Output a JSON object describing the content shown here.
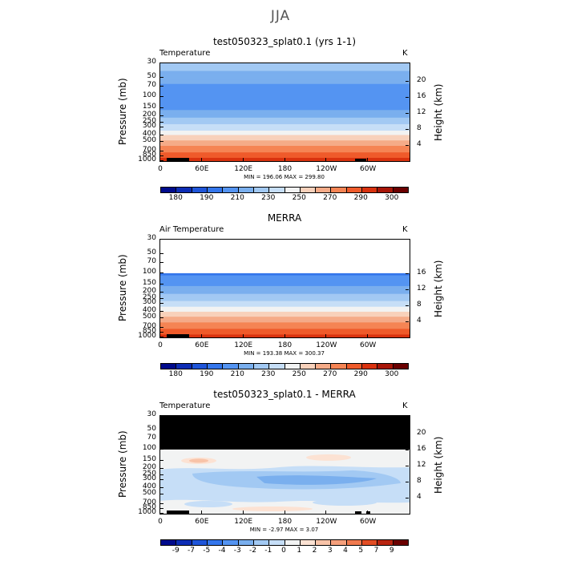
{
  "title": "JJA",
  "colors_abs": [
    "#000b8c",
    "#0d2db5",
    "#1f55d9",
    "#3476ec",
    "#5494f2",
    "#7aafee",
    "#a2c9f3",
    "#c6def7",
    "#f2f3f3",
    "#f8d1bb",
    "#f5ab88",
    "#f58454",
    "#ef5b2b",
    "#d9320f",
    "#a81608",
    "#6b0000"
  ],
  "colors_diff": [
    "#000b8c",
    "#0d2db5",
    "#1f55d9",
    "#3476ec",
    "#5494f2",
    "#7aafee",
    "#a2c9f3",
    "#c6def7",
    "#f2f3f3",
    "#fce2d3",
    "#f8c3a8",
    "#f5a07c",
    "#f07a4f",
    "#e24d24",
    "#b82410",
    "#6b0000"
  ],
  "panels": [
    {
      "title": "test050323_splat0.1 (yrs 1-1)",
      "var_label": "Temperature",
      "units": "K",
      "ylabel": "Pressure (mb)",
      "rlabel": "Height (km)",
      "pressure_ticks": [
        "30",
        "50",
        "70",
        "100",
        "150",
        "200",
        "250",
        "300",
        "400",
        "500",
        "700",
        "850",
        "1000"
      ],
      "height_ticks": [
        "20",
        "16",
        "12",
        "8",
        "4"
      ],
      "lon_ticks": [
        "0",
        "60E",
        "120E",
        "180",
        "120W",
        "60W"
      ],
      "minmax": "MIN = 196.06   MAX = 299.80",
      "cbar_labels": [
        "180",
        "190",
        "210",
        "230",
        "250",
        "270",
        "290",
        "300"
      ]
    },
    {
      "title": "MERRA",
      "var_label": "Air Temperature",
      "units": "K",
      "ylabel": "Pressure (mb)",
      "rlabel": "Height (km)",
      "pressure_ticks": [
        "30",
        "50",
        "70",
        "100",
        "150",
        "200",
        "250",
        "300",
        "400",
        "500",
        "700",
        "850",
        "1000"
      ],
      "height_ticks": [
        "16",
        "12",
        "8",
        "4"
      ],
      "lon_ticks": [
        "0",
        "60E",
        "120E",
        "180",
        "120W",
        "60W"
      ],
      "minmax": "MIN = 193.38   MAX = 300.37",
      "cbar_labels": [
        "180",
        "190",
        "210",
        "230",
        "250",
        "270",
        "290",
        "300"
      ]
    },
    {
      "title": "test050323_splat0.1 - MERRA",
      "var_label": "Temperature",
      "units": "K",
      "ylabel": "Pressure (mb)",
      "rlabel": "Height (km)",
      "pressure_ticks": [
        "30",
        "50",
        "70",
        "100",
        "150",
        "200",
        "250",
        "300",
        "400",
        "500",
        "700",
        "850",
        "1000"
      ],
      "height_ticks": [
        "20",
        "16",
        "12",
        "8",
        "4"
      ],
      "lon_ticks": [
        "0",
        "60E",
        "120E",
        "180",
        "120W",
        "60W"
      ],
      "minmax": "MIN =  -2.97   MAX =   3.07",
      "cbar_labels": [
        "-9",
        "-7",
        "-5",
        "-4",
        "-3",
        "-2",
        "-1",
        "0",
        "1",
        "2",
        "3",
        "4",
        "5",
        "7",
        "9"
      ]
    }
  ],
  "chart_data": [
    {
      "type": "heatmap",
      "title": "test050323_splat0.1 (yrs 1-1)",
      "variable": "Temperature",
      "units": "K",
      "xlabel": "",
      "ylabel": "Pressure (mb)",
      "ylabel_right": "Height (km)",
      "x_ticks": [
        "0",
        "60E",
        "120E",
        "180",
        "120W",
        "60W"
      ],
      "y_ticks": [
        30,
        50,
        70,
        100,
        150,
        200,
        250,
        300,
        400,
        500,
        700,
        850,
        1000
      ],
      "ylim": [
        1000,
        30
      ],
      "y_scale": "log",
      "min": 196.06,
      "max": 299.8,
      "contour_levels": [
        180,
        185,
        190,
        200,
        210,
        220,
        230,
        240,
        250,
        260,
        270,
        280,
        290,
        295,
        300
      ],
      "profile_pressure": [
        30,
        50,
        70,
        100,
        150,
        200,
        250,
        300,
        400,
        500,
        700,
        850,
        1000
      ],
      "profile_temperature": [
        225,
        215,
        207,
        200,
        208,
        218,
        226,
        235,
        250,
        263,
        278,
        287,
        295
      ]
    },
    {
      "type": "heatmap",
      "title": "MERRA",
      "variable": "Air Temperature",
      "units": "K",
      "xlabel": "",
      "ylabel": "Pressure (mb)",
      "ylabel_right": "Height (km)",
      "x_ticks": [
        "0",
        "60E",
        "120E",
        "180",
        "120W",
        "60W"
      ],
      "y_ticks": [
        30,
        50,
        70,
        100,
        150,
        200,
        250,
        300,
        400,
        500,
        700,
        850,
        1000
      ],
      "ylim": [
        1000,
        30
      ],
      "y_scale": "log",
      "min": 193.38,
      "max": 300.37,
      "contour_levels": [
        180,
        185,
        190,
        200,
        210,
        220,
        230,
        240,
        250,
        260,
        270,
        280,
        290,
        295,
        300
      ],
      "profile_pressure": [
        100,
        150,
        200,
        250,
        300,
        400,
        500,
        700,
        850,
        1000
      ],
      "profile_temperature": [
        198,
        208,
        218,
        226,
        235,
        250,
        263,
        278,
        287,
        295
      ]
    },
    {
      "type": "heatmap",
      "title": "test050323_splat0.1 - MERRA",
      "variable": "Temperature",
      "units": "K",
      "xlabel": "",
      "ylabel": "Pressure (mb)",
      "ylabel_right": "Height (km)",
      "x_ticks": [
        "0",
        "60E",
        "120E",
        "180",
        "120W",
        "60W"
      ],
      "y_ticks": [
        30,
        50,
        70,
        100,
        150,
        200,
        250,
        300,
        400,
        500,
        700,
        850,
        1000
      ],
      "ylim": [
        1000,
        30
      ],
      "y_scale": "log",
      "min": -2.97,
      "max": 3.07,
      "contour_levels": [
        -9,
        -7,
        -5,
        -4,
        -3,
        -2,
        -1,
        0,
        1,
        2,
        3,
        4,
        5,
        7,
        9
      ],
      "no_data_above_pressure": 100
    }
  ]
}
